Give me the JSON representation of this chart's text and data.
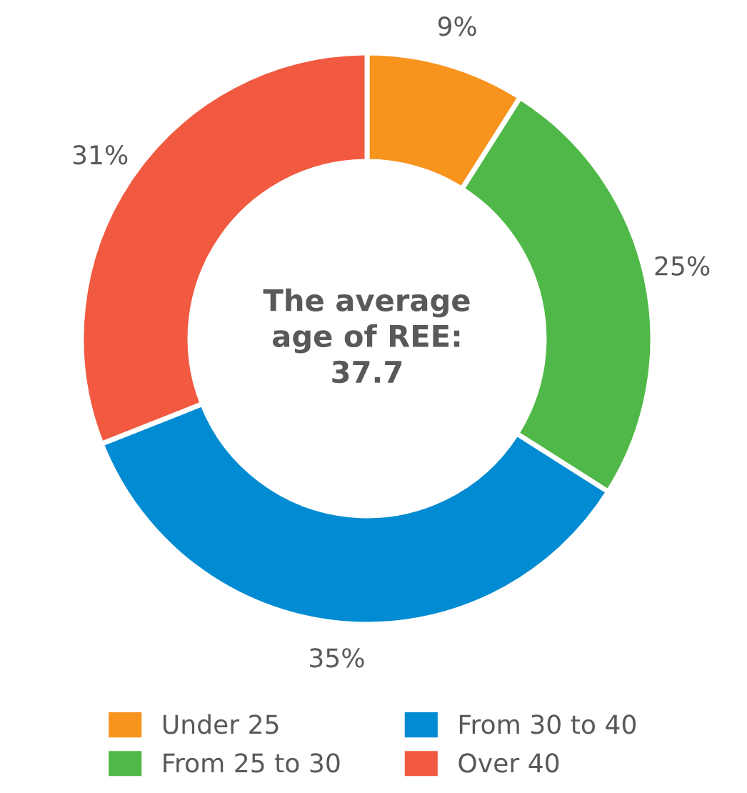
{
  "chart_data": {
    "type": "donut",
    "annotations": [
      "The average\nage of REE:\n37.7"
    ],
    "categories": [
      "Under 25",
      "From 25 to 30",
      "From 30 to 40",
      "Over 40"
    ],
    "values": [
      9,
      25,
      35,
      31
    ],
    "colors": [
      "#f7941d",
      "#50b848",
      "#008bd2",
      "#f15a40"
    ],
    "value_labels": [
      "9%",
      "25%",
      "35%",
      "31%"
    ],
    "legend": "bottom"
  }
}
